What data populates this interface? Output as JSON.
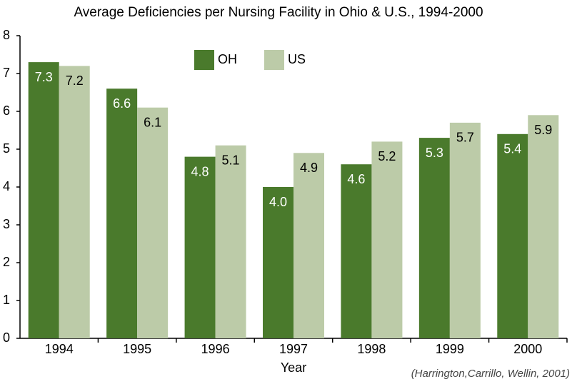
{
  "chart_data": {
    "type": "bar",
    "title": "Average Deficiencies per Nursing Facility in Ohio & U.S., 1994-2000",
    "x_label": "Year",
    "annotation": "(Harrington,Carrillo, Wellin, 2001)",
    "categories": [
      "1994",
      "1995",
      "1996",
      "1997",
      "1998",
      "1999",
      "2000"
    ],
    "series": [
      {
        "name": "OH",
        "color": "#4a7a2c",
        "values": [
          7.3,
          6.6,
          4.8,
          4.0,
          4.6,
          5.3,
          5.4
        ],
        "value_labels": [
          "7.3",
          "6.6",
          "4.8",
          "4.0",
          "4.6",
          "5.3",
          "5.4"
        ]
      },
      {
        "name": "US",
        "color": "#bccba8",
        "values": [
          7.2,
          6.1,
          5.1,
          4.9,
          5.2,
          5.7,
          5.9
        ],
        "value_labels": [
          "7.2",
          "6.1",
          "5.1",
          "4.9",
          "5.2",
          "5.7",
          "5.9"
        ]
      }
    ],
    "ylim": [
      0,
      8
    ],
    "yticks": [
      0,
      1,
      2,
      3,
      4,
      5,
      6,
      7,
      8
    ],
    "grid": false,
    "legend": "top"
  }
}
